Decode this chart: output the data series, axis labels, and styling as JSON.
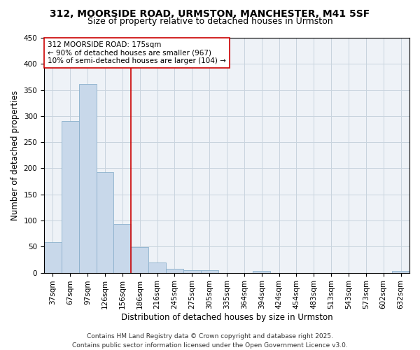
{
  "title": "312, MOORSIDE ROAD, URMSTON, MANCHESTER, M41 5SF",
  "subtitle": "Size of property relative to detached houses in Urmston",
  "xlabel": "Distribution of detached houses by size in Urmston",
  "ylabel": "Number of detached properties",
  "categories": [
    "37sqm",
    "67sqm",
    "97sqm",
    "126sqm",
    "156sqm",
    "186sqm",
    "216sqm",
    "245sqm",
    "275sqm",
    "305sqm",
    "335sqm",
    "364sqm",
    "394sqm",
    "424sqm",
    "454sqm",
    "483sqm",
    "513sqm",
    "543sqm",
    "573sqm",
    "602sqm",
    "632sqm"
  ],
  "values": [
    58,
    291,
    362,
    193,
    93,
    49,
    20,
    8,
    5,
    5,
    0,
    0,
    4,
    0,
    0,
    0,
    0,
    0,
    0,
    0,
    4
  ],
  "bar_color": "#c8d8ea",
  "bar_edge_color": "#8ab0cc",
  "vline_x_idx": 5,
  "vline_color": "#cc0000",
  "annotation_line1": "312 MOORSIDE ROAD: 175sqm",
  "annotation_line2": "← 90% of detached houses are smaller (967)",
  "annotation_line3": "10% of semi-detached houses are larger (104) →",
  "annotation_box_facecolor": "#ffffff",
  "annotation_box_edgecolor": "#cc0000",
  "ylim": [
    0,
    450
  ],
  "yticks": [
    0,
    50,
    100,
    150,
    200,
    250,
    300,
    350,
    400,
    450
  ],
  "grid_color": "#c8d4de",
  "background_color": "#eef2f7",
  "footer_text": "Contains HM Land Registry data © Crown copyright and database right 2025.\nContains public sector information licensed under the Open Government Licence v3.0.",
  "title_fontsize": 10,
  "subtitle_fontsize": 9,
  "axis_label_fontsize": 8.5,
  "tick_fontsize": 7.5,
  "annotation_fontsize": 7.5,
  "footer_fontsize": 6.5
}
